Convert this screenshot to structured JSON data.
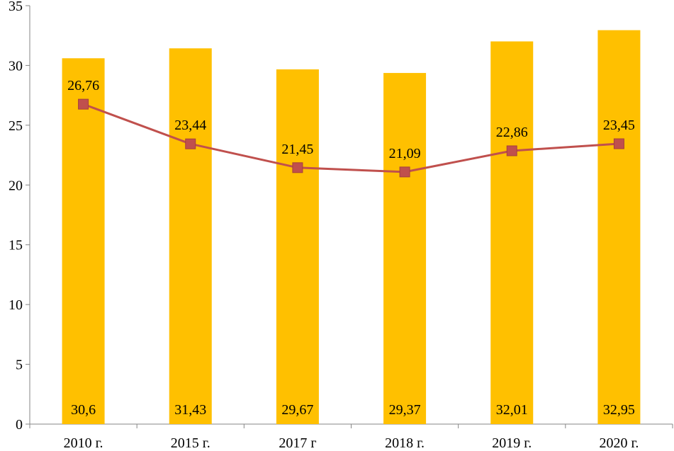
{
  "chart_data": {
    "type": "bar",
    "categories": [
      "2010 г.",
      "2015 г.",
      "2017 г",
      "2018 г.",
      "2019 г.",
      "2020  г."
    ],
    "series": [
      {
        "type": "bar",
        "values": [
          30.6,
          31.43,
          29.67,
          29.37,
          32.01,
          32.95
        ],
        "data_labels": [
          "30,6",
          "31,43",
          "29,67",
          "29,37",
          "32,01",
          "32,95"
        ],
        "color": "#FFC000"
      },
      {
        "type": "line",
        "values": [
          26.76,
          23.44,
          21.45,
          21.09,
          22.86,
          23.45
        ],
        "data_labels": [
          "26,76",
          "23,44",
          "21,45",
          "21,09",
          "22,86",
          "23,45"
        ],
        "color": "#C0504D",
        "marker": "square"
      }
    ],
    "ylim": [
      0,
      35
    ],
    "yticks": [
      0,
      5,
      10,
      15,
      20,
      25,
      30,
      35
    ],
    "grid": false,
    "legend": "none"
  }
}
